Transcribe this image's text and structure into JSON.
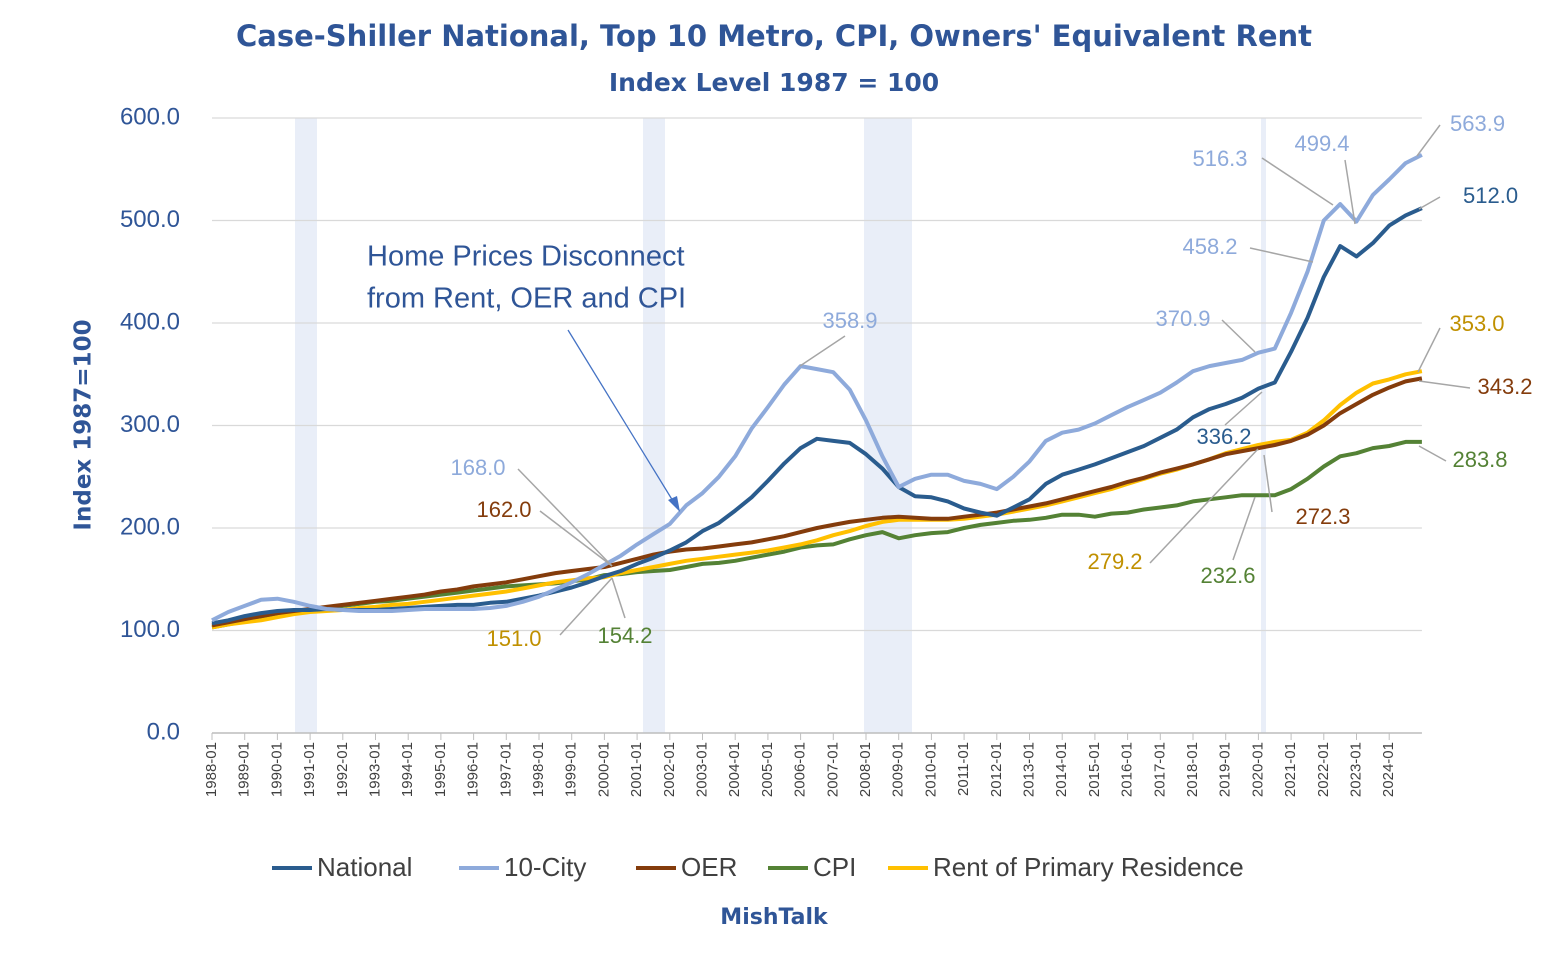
{
  "chart_data": {
    "type": "line",
    "title": "Case-Shiller National, Top 10 Metro, CPI, Owners' Equivalent Rent",
    "subtitle": "Index Level 1987 = 100",
    "y_label": "Index 1987=100",
    "source": "MishTalk",
    "note": [
      "Home Prices Disconnect",
      "from Rent, OER and CPI"
    ],
    "categories": [
      "1988-01",
      null,
      "1989-01",
      null,
      "1990-01",
      null,
      "1991-01",
      null,
      "1992-01",
      null,
      "1993-01",
      null,
      "1994-01",
      null,
      "1995-01",
      null,
      "1996-01",
      null,
      "1997-01",
      null,
      "1998-01",
      null,
      "1999-01",
      null,
      "2000-01",
      null,
      "2001-01",
      null,
      "2002-01",
      null,
      "2003-01",
      null,
      "2004-01",
      null,
      "2005-01",
      null,
      "2006-01",
      null,
      "2007-01",
      null,
      "2008-01",
      null,
      "2009-01",
      null,
      "2010-01",
      null,
      "2011-01",
      null,
      "2012-01",
      null,
      "2013-01",
      null,
      "2014-01",
      null,
      "2015-01",
      null,
      "2016-01",
      null,
      "2017-01",
      null,
      "2018-01",
      null,
      "2019-01",
      null,
      "2020-01",
      null,
      "2021-01",
      null,
      "2022-01",
      null,
      "2023-01",
      null,
      "2024-01",
      null,
      null
    ],
    "ylim": [
      0,
      600
    ],
    "yticks": [
      {
        "value": 0,
        "label": "0.0"
      },
      {
        "value": 100,
        "label": "100.0"
      },
      {
        "value": 200,
        "label": "200.0"
      },
      {
        "value": 300,
        "label": "300.0"
      },
      {
        "value": 400,
        "label": "400.0"
      },
      {
        "value": 500,
        "label": "500.0"
      },
      {
        "value": 600,
        "label": "600.0"
      }
    ],
    "grid": true,
    "legend": "bottom",
    "series": [
      {
        "name": "National",
        "color": "#2a5c8e",
        "values": [
          107,
          110,
          114,
          117,
          119,
          120,
          120,
          121,
          120,
          120,
          120,
          121,
          122,
          123,
          124,
          125,
          125,
          127,
          128,
          131,
          134,
          138,
          142,
          147,
          153,
          158,
          165,
          171,
          178,
          186,
          197,
          205,
          217,
          230,
          246,
          263,
          278,
          287,
          285,
          283,
          272,
          258,
          240,
          231,
          230,
          226,
          219,
          215,
          212,
          220,
          228,
          243,
          252,
          257,
          262,
          268,
          274,
          280,
          288,
          296,
          308,
          316,
          321,
          327,
          336,
          342,
          372,
          405,
          445,
          475,
          465,
          478,
          495,
          505,
          512
        ]
      },
      {
        "name": "10-City",
        "color": "#8eaadb",
        "values": [
          110,
          118,
          124,
          130,
          131,
          128,
          124,
          121,
          120,
          119,
          119,
          119,
          120,
          121,
          121,
          121,
          121,
          122,
          124,
          128,
          133,
          140,
          147,
          155,
          164,
          173,
          184,
          194,
          204,
          222,
          234,
          250,
          270,
          297,
          318,
          340,
          358,
          355,
          352,
          335,
          305,
          270,
          240,
          248,
          252,
          252,
          246,
          243,
          238,
          250,
          265,
          285,
          293,
          296,
          302,
          310,
          318,
          325,
          332,
          342,
          353,
          358,
          361,
          364,
          371,
          375,
          410,
          450,
          500,
          516,
          499,
          525,
          540,
          556,
          564
        ]
      },
      {
        "name": "OER",
        "color": "#843c0c",
        "values": [
          105,
          108,
          111,
          114,
          117,
          119,
          121,
          123,
          125,
          127,
          129,
          131,
          133,
          135,
          138,
          140,
          143,
          145,
          147,
          150,
          153,
          156,
          158,
          160,
          162,
          166,
          170,
          174,
          177,
          179,
          180,
          182,
          184,
          186,
          189,
          192,
          196,
          200,
          203,
          206,
          208,
          210,
          211,
          210,
          209,
          209,
          211,
          213,
          215,
          218,
          221,
          224,
          228,
          232,
          236,
          240,
          245,
          249,
          254,
          258,
          262,
          267,
          272,
          275,
          278,
          281,
          285,
          291,
          300,
          312,
          321,
          330,
          337,
          343,
          346
        ]
      },
      {
        "name": "CPI",
        "color": "#548235",
        "values": [
          103,
          106,
          109,
          112,
          115,
          118,
          121,
          122,
          124,
          126,
          128,
          129,
          131,
          133,
          135,
          137,
          139,
          141,
          143,
          144,
          145,
          146,
          148,
          150,
          154,
          155,
          157,
          158,
          159,
          162,
          165,
          166,
          168,
          171,
          174,
          177,
          181,
          183,
          184,
          189,
          193,
          196,
          190,
          193,
          195,
          196,
          200,
          203,
          205,
          207,
          208,
          210,
          213,
          213,
          211,
          214,
          215,
          218,
          220,
          222,
          226,
          228,
          230,
          232,
          232,
          232,
          238,
          248,
          260,
          270,
          273,
          278,
          280,
          284,
          284
        ]
      },
      {
        "name": "Rent of Primary Residence",
        "color": "#ffc000",
        "values": [
          103,
          106,
          108,
          110,
          113,
          116,
          118,
          119,
          120,
          122,
          123,
          125,
          126,
          128,
          130,
          132,
          134,
          136,
          138,
          141,
          144,
          147,
          149,
          151,
          152,
          156,
          159,
          162,
          165,
          168,
          170,
          172,
          174,
          176,
          178,
          181,
          184,
          188,
          193,
          197,
          202,
          206,
          208,
          208,
          208,
          208,
          209,
          211,
          213,
          216,
          219,
          222,
          226,
          230,
          234,
          238,
          243,
          248,
          253,
          257,
          262,
          267,
          273,
          277,
          281,
          284,
          286,
          293,
          305,
          320,
          332,
          341,
          345,
          350,
          353
        ]
      }
    ],
    "annotations": [
      {
        "text": "563.9",
        "color": "#8eaadb"
      },
      {
        "text": "512.0",
        "color": "#2a5c8e"
      },
      {
        "text": "499.4",
        "color": "#8eaadb"
      },
      {
        "text": "516.3",
        "color": "#8eaadb"
      },
      {
        "text": "458.2",
        "color": "#8eaadb"
      },
      {
        "text": "370.9",
        "color": "#8eaadb"
      },
      {
        "text": "358.9",
        "color": "#8eaadb"
      },
      {
        "text": "353.0",
        "color": "#c09000"
      },
      {
        "text": "343.2",
        "color": "#843c0c"
      },
      {
        "text": "336.2",
        "color": "#2a5c8e"
      },
      {
        "text": "283.8",
        "color": "#548235"
      },
      {
        "text": "272.3",
        "color": "#843c0c"
      },
      {
        "text": "279.2",
        "color": "#c09000"
      },
      {
        "text": "232.6",
        "color": "#548235"
      },
      {
        "text": "168.0",
        "color": "#8eaadb"
      },
      {
        "text": "162.0",
        "color": "#843c0c"
      },
      {
        "text": "151.0",
        "color": "#c09000"
      },
      {
        "text": "154.2",
        "color": "#548235"
      }
    ]
  }
}
